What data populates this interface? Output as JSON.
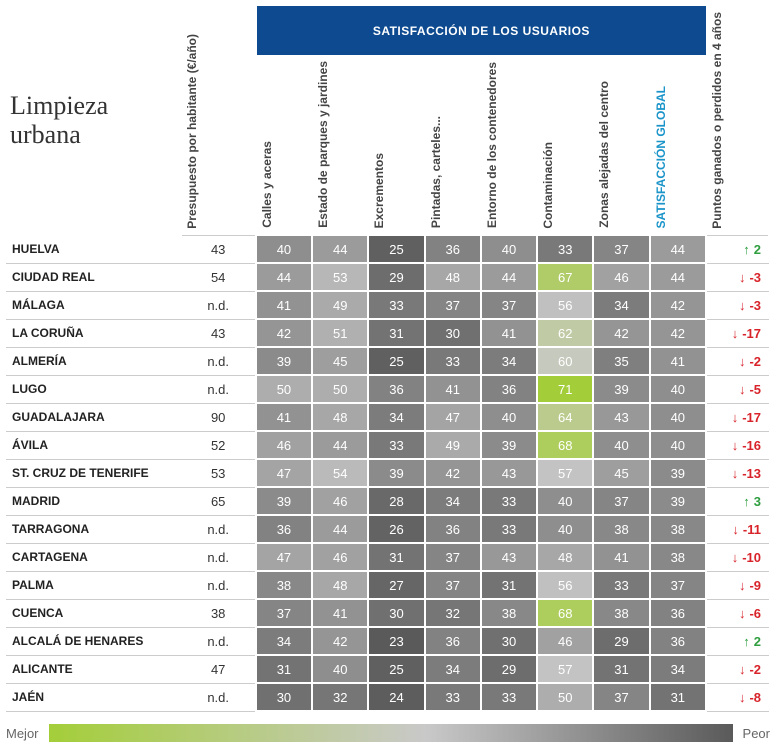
{
  "title": "Limpieza urbana",
  "header_bar": "SATISFACCIÓN DE LOS USUARIOS",
  "legend": {
    "left": "Mejor",
    "right": "Peor"
  },
  "column_widths": {
    "city": 156,
    "budget": 66,
    "metric": 50,
    "change": 56
  },
  "gradient": {
    "best": "#a4ce39",
    "mid": "#c9c9c9",
    "worst": "#5a5a5a"
  },
  "color_scale": {
    "min_value": 23,
    "max_value": 71,
    "text_color": "#ffffff"
  },
  "change_colors": {
    "up": "#2e9e3f",
    "down": "#d8232a"
  },
  "columns": [
    {
      "key": "budget",
      "label": "Presupuesto por habitante (€/año)"
    },
    {
      "key": "c0",
      "label": "Calles y aceras"
    },
    {
      "key": "c1",
      "label": "Estado de parques y jardines"
    },
    {
      "key": "c2",
      "label": "Excrementos"
    },
    {
      "key": "c3",
      "label": "Pintadas, carteles..."
    },
    {
      "key": "c4",
      "label": "Entorno de los contenedores"
    },
    {
      "key": "c5",
      "label": "Contaminación"
    },
    {
      "key": "c6",
      "label": "Zonas alejadas del centro"
    },
    {
      "key": "sat",
      "label": "SATISFACCIÓN GLOBAL",
      "highlight": true
    },
    {
      "key": "change",
      "label": "Puntos ganados o perdidos en 4 años"
    }
  ],
  "rows": [
    {
      "city": "HUELVA",
      "budget": "43",
      "v": [
        40,
        44,
        25,
        36,
        40,
        33,
        37,
        44
      ],
      "change": 2
    },
    {
      "city": "CIUDAD REAL",
      "budget": "54",
      "v": [
        44,
        53,
        29,
        48,
        44,
        67,
        46,
        44
      ],
      "change": -3
    },
    {
      "city": "MÁLAGA",
      "budget": "n.d.",
      "v": [
        41,
        49,
        33,
        37,
        37,
        56,
        34,
        42
      ],
      "change": -3
    },
    {
      "city": "LA CORUÑA",
      "budget": "43",
      "v": [
        42,
        51,
        31,
        30,
        41,
        62,
        42,
        42
      ],
      "change": -17
    },
    {
      "city": "ALMERÍA",
      "budget": "n.d.",
      "v": [
        39,
        45,
        25,
        33,
        34,
        60,
        35,
        41
      ],
      "change": -2
    },
    {
      "city": "LUGO",
      "budget": "n.d.",
      "v": [
        50,
        50,
        36,
        41,
        36,
        71,
        39,
        40
      ],
      "change": -5
    },
    {
      "city": "GUADALAJARA",
      "budget": "90",
      "v": [
        41,
        48,
        34,
        47,
        40,
        64,
        43,
        40
      ],
      "change": -17
    },
    {
      "city": "ÁVILA",
      "budget": "52",
      "v": [
        46,
        44,
        33,
        49,
        39,
        68,
        40,
        40
      ],
      "change": -16
    },
    {
      "city": "ST. CRUZ DE TENERIFE",
      "budget": "53",
      "v": [
        47,
        54,
        39,
        42,
        43,
        57,
        45,
        39
      ],
      "change": -13
    },
    {
      "city": "MADRID",
      "budget": "65",
      "v": [
        39,
        46,
        28,
        34,
        33,
        40,
        37,
        39
      ],
      "change": 3
    },
    {
      "city": "TARRAGONA",
      "budget": "n.d.",
      "v": [
        36,
        44,
        26,
        36,
        33,
        40,
        38,
        38
      ],
      "change": -11
    },
    {
      "city": "CARTAGENA",
      "budget": "n.d.",
      "v": [
        47,
        46,
        31,
        37,
        43,
        48,
        41,
        38
      ],
      "change": -10
    },
    {
      "city": "PALMA",
      "budget": "n.d.",
      "v": [
        38,
        48,
        27,
        37,
        31,
        56,
        33,
        37
      ],
      "change": -9
    },
    {
      "city": "CUENCA",
      "budget": "38",
      "v": [
        37,
        41,
        30,
        32,
        38,
        68,
        38,
        36
      ],
      "change": -6
    },
    {
      "city": "ALCALÁ DE HENARES",
      "budget": "n.d.",
      "v": [
        34,
        42,
        23,
        36,
        30,
        46,
        29,
        36
      ],
      "change": 2
    },
    {
      "city": "ALICANTE",
      "budget": "47",
      "v": [
        31,
        40,
        25,
        34,
        29,
        57,
        31,
        34
      ],
      "change": -2
    },
    {
      "city": "JAÉN",
      "budget": "n.d.",
      "v": [
        30,
        32,
        24,
        33,
        33,
        50,
        37,
        31
      ],
      "change": -8
    }
  ],
  "typography": {
    "title_font": "Georgia serif",
    "title_size_pt": 20,
    "body_font": "Arial sans-serif",
    "header_size_pt": 9,
    "cell_size_pt": 10
  }
}
